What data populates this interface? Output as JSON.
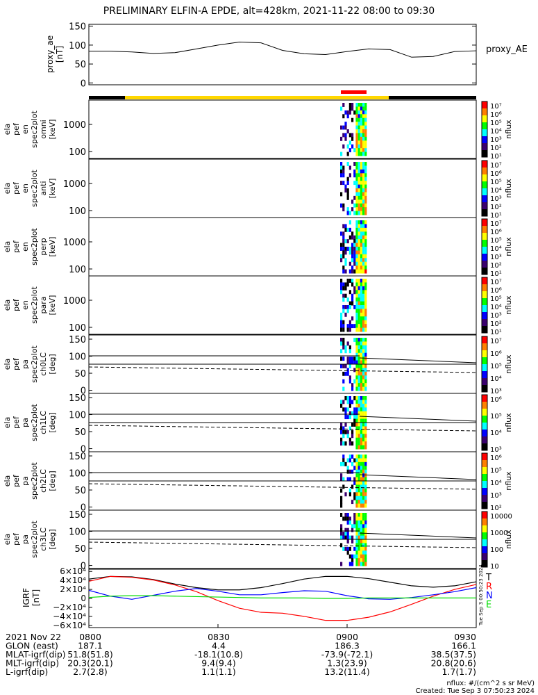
{
  "title": "PRELIMINARY ELFIN-A EPDE, alt=428km, 2021-11-22 08:00 to 09:30",
  "chart_data": [
    {
      "type": "line",
      "id": "proxy_ae",
      "ylabel": [
        "proxy_ae",
        "[nT]"
      ],
      "legend": "proxy_AE",
      "ylim": [
        -5,
        155
      ],
      "yticks": [
        "0",
        "50",
        "100",
        "150"
      ],
      "ytick_values": [
        0,
        50,
        100,
        150
      ],
      "x_minutes": [
        0,
        5,
        10,
        15,
        20,
        25,
        30,
        35,
        40,
        45,
        50,
        55,
        60,
        65,
        70,
        75,
        80,
        85,
        90
      ],
      "values": [
        84,
        84,
        82,
        78,
        80,
        90,
        100,
        108,
        106,
        86,
        77,
        75,
        83,
        90,
        88,
        68,
        70,
        83,
        85
      ]
    },
    {
      "type": "heatmap",
      "id": "omni",
      "ylabel": [
        "ela",
        "pef",
        "en",
        "spec2plot",
        "omni",
        "[keV]"
      ],
      "yticks": [
        "1000",
        "100"
      ],
      "colorbar": {
        "ticks": [
          "10⁷",
          "10⁶",
          "10⁵",
          "10⁴",
          "10³",
          "10²",
          "10¹"
        ],
        "label": "nflux"
      }
    },
    {
      "type": "heatmap",
      "id": "anti",
      "ylabel": [
        "ela",
        "pef",
        "en",
        "spec2plot",
        "anti",
        "[keV]"
      ],
      "yticks": [
        "1000",
        "100"
      ],
      "colorbar": {
        "ticks": [
          "10⁷",
          "10⁶",
          "10⁵",
          "10⁴",
          "10³",
          "10²",
          "10¹"
        ],
        "label": "nflux"
      }
    },
    {
      "type": "heatmap",
      "id": "perp",
      "ylabel": [
        "ela",
        "pef",
        "en",
        "spec2plot",
        "perp",
        "[keV]"
      ],
      "yticks": [
        "1000",
        "100"
      ],
      "colorbar": {
        "ticks": [
          "10⁷",
          "10⁶",
          "10⁵",
          "10⁴",
          "10³",
          "10²",
          "10¹"
        ],
        "label": "nflux"
      }
    },
    {
      "type": "heatmap",
      "id": "para",
      "ylabel": [
        "ela",
        "pef",
        "en",
        "spec2plot",
        "para",
        "[keV]"
      ],
      "yticks": [
        "1000",
        "100"
      ],
      "colorbar": {
        "ticks": [
          "10⁷",
          "10⁶",
          "10⁵",
          "10⁴",
          "10³",
          "10²",
          "10¹"
        ],
        "label": "nflux"
      }
    },
    {
      "type": "heatmap",
      "id": "ch0LC",
      "ylabel": [
        "ela",
        "pef",
        "pa",
        "spec2plot",
        "ch0LC",
        "[deg]"
      ],
      "yticks": [
        "150",
        "100",
        "50",
        "0"
      ],
      "colorbar": {
        "ticks": [
          "10⁷",
          "10⁶",
          "10⁵",
          "10⁴",
          "10³"
        ],
        "label": "nflux"
      }
    },
    {
      "type": "heatmap",
      "id": "ch1LC",
      "ylabel": [
        "ela",
        "pef",
        "pa",
        "spec2plot",
        "ch1LC",
        "[deg]"
      ],
      "yticks": [
        "150",
        "100",
        "50",
        "0"
      ],
      "colorbar": {
        "ticks": [
          "10⁶",
          "10⁵",
          "10⁴",
          "10³"
        ],
        "label": "nflux"
      }
    },
    {
      "type": "heatmap",
      "id": "ch2LC",
      "ylabel": [
        "ela",
        "pef",
        "pa",
        "spec2plot",
        "ch2LC",
        "[deg]"
      ],
      "yticks": [
        "150",
        "100",
        "50",
        "0"
      ],
      "colorbar": {
        "ticks": [
          "10⁶",
          "10⁵",
          "10⁴",
          "10³",
          "10²"
        ],
        "label": "nflux"
      }
    },
    {
      "type": "heatmap",
      "id": "ch3LC",
      "ylabel": [
        "ela",
        "pef",
        "pa",
        "spec2plot",
        "ch3LC",
        "[deg]"
      ],
      "yticks": [
        "150",
        "100",
        "50",
        "0"
      ],
      "colorbar": {
        "ticks": [
          "10000",
          "1000",
          "100",
          "10"
        ],
        "label": "nflux"
      }
    },
    {
      "type": "line",
      "id": "igrf",
      "ylabel": [
        "IGRF",
        "[nT]"
      ],
      "ylim": [
        -65000,
        65000
      ],
      "yticks": [
        "6×10⁴",
        "4×10⁴",
        "2×10⁴",
        "0",
        "−2×10⁴",
        "−4×10⁴",
        "−6×10⁴"
      ],
      "ytick_values": [
        60000,
        40000,
        20000,
        0,
        -20000,
        -40000,
        -60000
      ],
      "x_minutes": [
        0,
        5,
        10,
        15,
        20,
        25,
        30,
        35,
        40,
        45,
        50,
        55,
        60,
        65,
        70,
        75,
        80,
        85,
        90
      ],
      "series": [
        {
          "name": "T",
          "color": "#000000",
          "values": [
            43000,
            49000,
            48000,
            42000,
            32000,
            24000,
            19000,
            19000,
            24000,
            33000,
            43000,
            49000,
            49000,
            44000,
            36000,
            28000,
            25000,
            28000,
            37000
          ]
        },
        {
          "name": "R",
          "color": "#ff0000",
          "values": [
            38000,
            49000,
            47000,
            41000,
            30000,
            15000,
            -5000,
            -22000,
            -31000,
            -33000,
            -40000,
            -49000,
            -49000,
            -42000,
            -30000,
            -13000,
            5000,
            20000,
            31000
          ]
        },
        {
          "name": "N",
          "color": "#0000ff",
          "values": [
            18000,
            5000,
            -2000,
            7000,
            16000,
            22000,
            16000,
            8000,
            8000,
            13000,
            17000,
            16000,
            6000,
            -1000,
            -2000,
            2000,
            8000,
            15000,
            24000
          ]
        },
        {
          "name": "E",
          "color": "#00dd00",
          "values": [
            2000,
            5000,
            6000,
            6000,
            5000,
            4000,
            3000,
            2000,
            1000,
            1000,
            1000,
            0,
            0,
            1000,
            1000,
            1000,
            1000,
            1000,
            1000
          ]
        }
      ]
    }
  ],
  "xaxis": {
    "ticks": [
      "0800",
      "0830",
      "0900",
      "0930"
    ],
    "rows": [
      {
        "label": "2021 Nov 22",
        "values": [
          "0800",
          "0830",
          "0900",
          "0930"
        ]
      },
      {
        "label": "GLON (east)",
        "values": [
          "187.1",
          "4.4",
          "186.3",
          "166.1"
        ]
      },
      {
        "label": "MLAT-igrf(dip)",
        "values": [
          "51.8(51.8)",
          "-18.1(10.8)",
          "-73.9(-72.1)",
          "38.5(37.5)"
        ]
      },
      {
        "label": "MLT-igrf(dip)",
        "values": [
          "20.3(20.1)",
          "9.4(9.4)",
          "1.3(23.9)",
          "20.8(20.6)"
        ]
      },
      {
        "label": "L-igrf(dip)",
        "values": [
          "2.7(2.8)",
          "1.1(1.1)",
          "13.2(11.4)",
          "1.7(1.7)"
        ]
      }
    ]
  },
  "footer": {
    "units": "nflux: #/(cm^2 s sr MeV)",
    "created": "Created: Tue Sep  3 07:50:23 2024",
    "side_stamp": "Tue Sep  3 00:50:23 2024"
  },
  "colors": {
    "colorbar": [
      "#ff0000",
      "#ff8000",
      "#ffff00",
      "#00ff00",
      "#00ffff",
      "#0000ff",
      "#3a006e",
      "#000000"
    ]
  }
}
